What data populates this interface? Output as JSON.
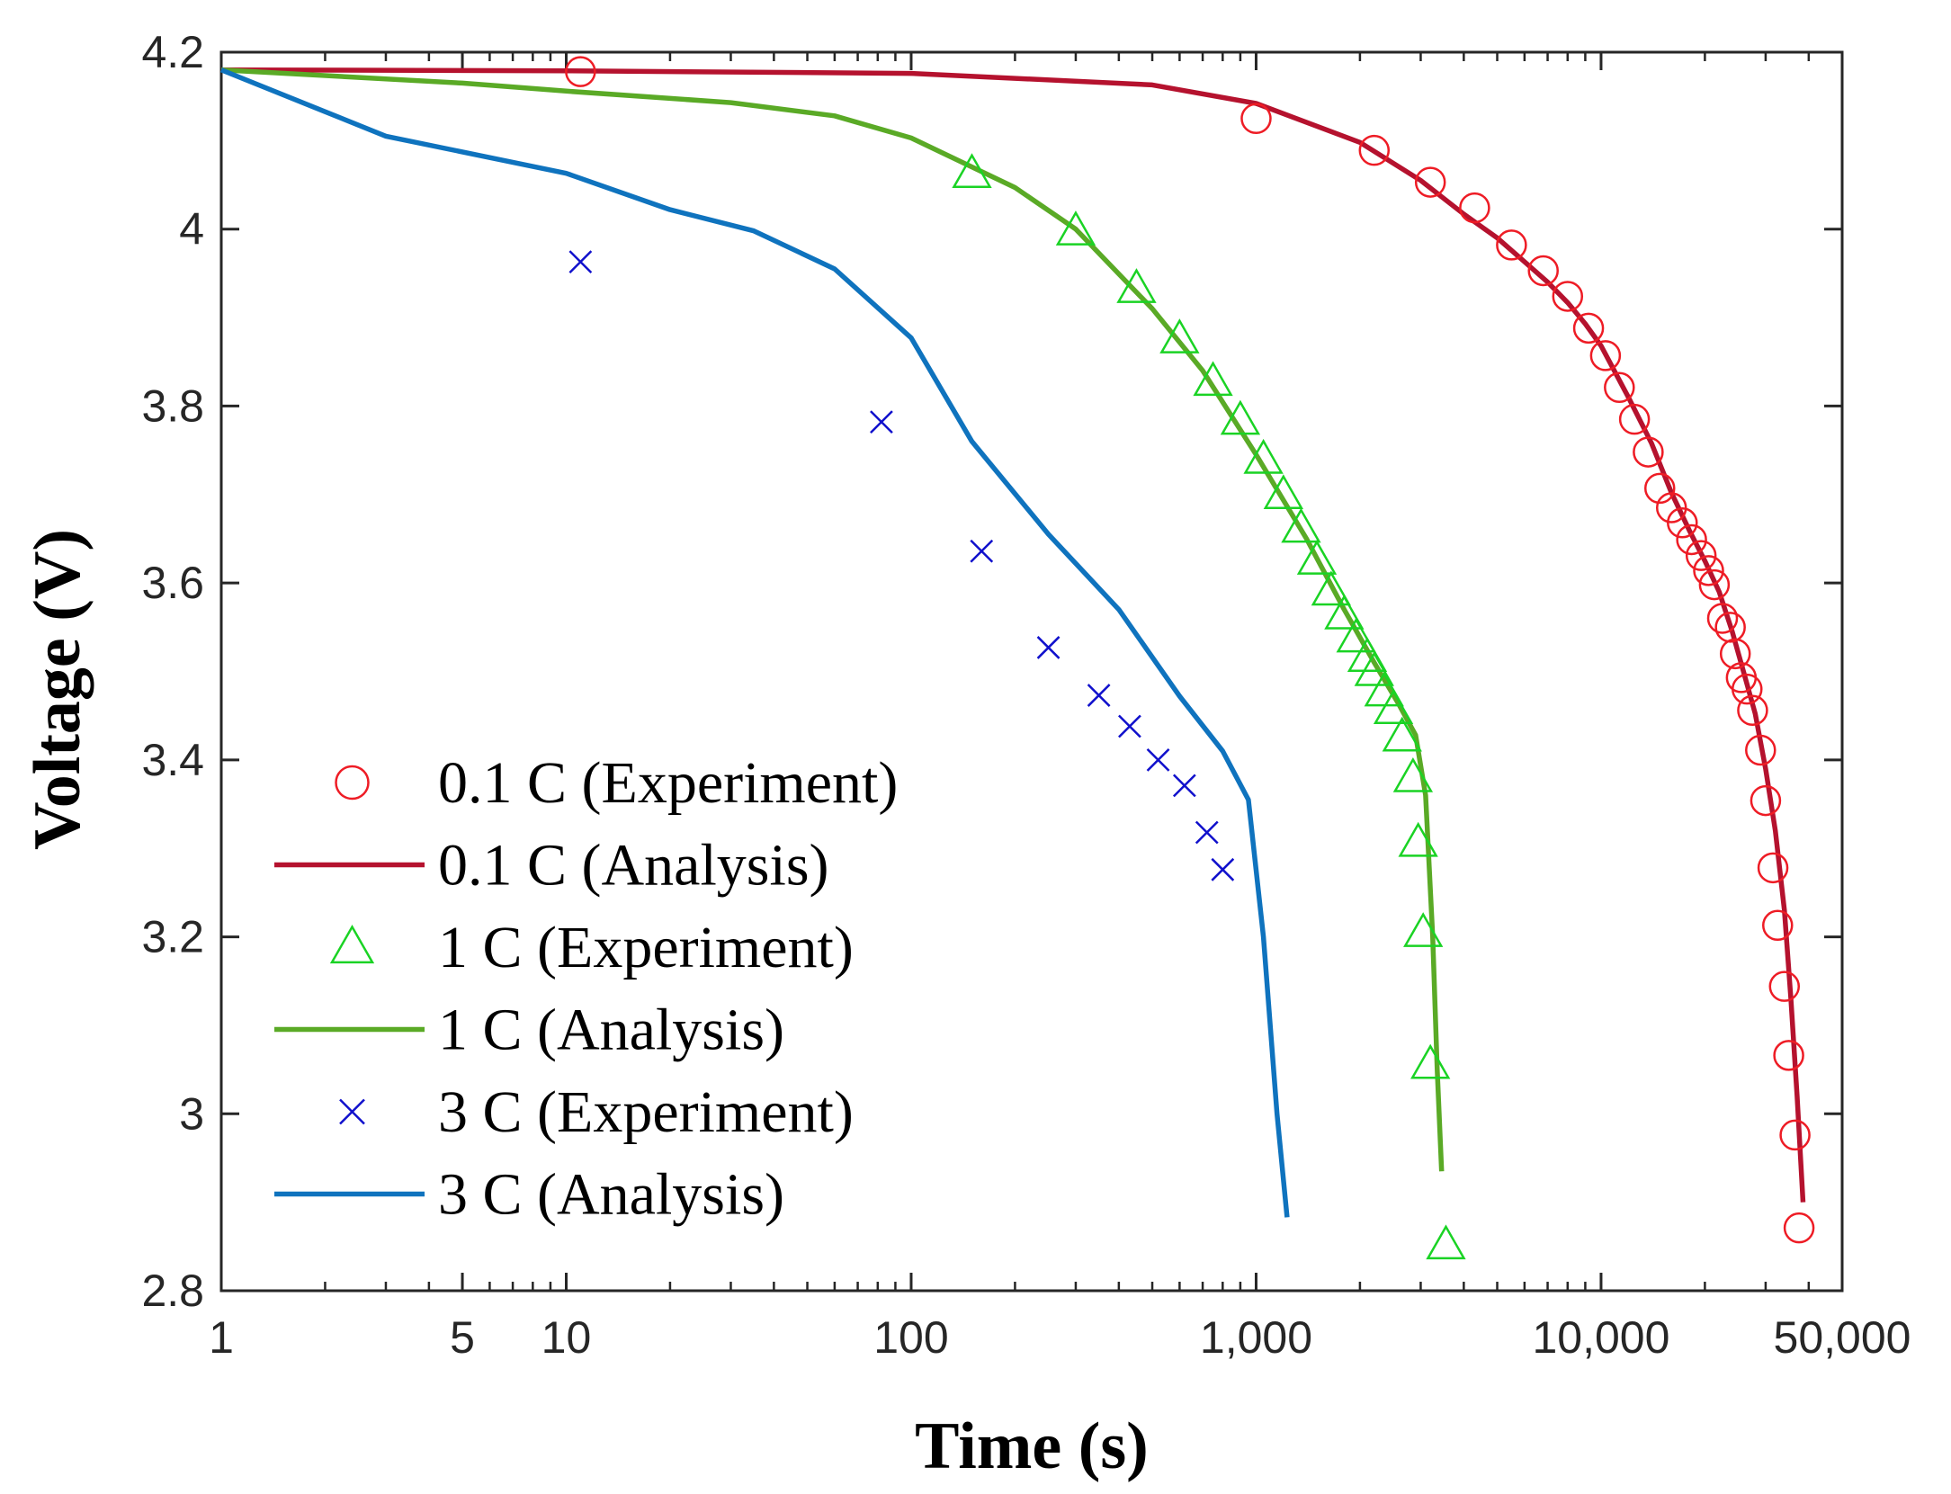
{
  "chart_data": {
    "type": "line",
    "xlabel": "Time (s)",
    "ylabel": "Voltage (V)",
    "xscale": "log",
    "xlim": [
      1,
      50000
    ],
    "ylim": [
      2.8,
      4.2
    ],
    "grid": false,
    "legend_position": "bottom-left",
    "x_ticks": [
      {
        "value": 1,
        "label": "1"
      },
      {
        "value": 5,
        "label": "5"
      },
      {
        "value": 10,
        "label": "10"
      },
      {
        "value": 100,
        "label": "100"
      },
      {
        "value": 1000,
        "label": "1,000"
      },
      {
        "value": 10000,
        "label": "10,000"
      },
      {
        "value": 50000,
        "label": "50,000"
      }
    ],
    "y_ticks": [
      {
        "value": 2.8,
        "label": "2.8"
      },
      {
        "value": 3.0,
        "label": "3"
      },
      {
        "value": 3.2,
        "label": "3.2"
      },
      {
        "value": 3.4,
        "label": "3.4"
      },
      {
        "value": 3.6,
        "label": "3.6"
      },
      {
        "value": 3.8,
        "label": "3.8"
      },
      {
        "value": 4.0,
        "label": "4"
      },
      {
        "value": 4.2,
        "label": "4.2"
      }
    ],
    "series": [
      {
        "name": "0.1 C (Experiment)",
        "kind": "marker",
        "marker": "circle",
        "color": "#ee1c25",
        "points": [
          [
            11,
            4.178
          ],
          [
            1000,
            4.125
          ],
          [
            2200,
            4.089
          ],
          [
            3200,
            4.053
          ],
          [
            4300,
            4.024
          ],
          [
            5500,
            3.982
          ],
          [
            6800,
            3.953
          ],
          [
            8000,
            3.924
          ],
          [
            9200,
            3.888
          ],
          [
            10300,
            3.857
          ],
          [
            11300,
            3.821
          ],
          [
            12500,
            3.785
          ],
          [
            13700,
            3.748
          ],
          [
            14800,
            3.707
          ],
          [
            16000,
            3.685
          ],
          [
            17200,
            3.668
          ],
          [
            18300,
            3.649
          ],
          [
            19500,
            3.631
          ],
          [
            20500,
            3.614
          ],
          [
            21300,
            3.598
          ],
          [
            22500,
            3.56
          ],
          [
            23700,
            3.55
          ],
          [
            24500,
            3.52
          ],
          [
            25500,
            3.493
          ],
          [
            26500,
            3.48
          ],
          [
            27500,
            3.456
          ],
          [
            29000,
            3.411
          ],
          [
            30000,
            3.354
          ],
          [
            31500,
            3.278
          ],
          [
            32500,
            3.213
          ],
          [
            34000,
            3.144
          ],
          [
            35000,
            3.066
          ],
          [
            36500,
            2.976
          ],
          [
            37500,
            2.871
          ]
        ]
      },
      {
        "name": "0.1 C (Analysis)",
        "kind": "line",
        "color": "#b5122e",
        "points": [
          [
            1,
            4.18
          ],
          [
            10,
            4.179
          ],
          [
            100,
            4.176
          ],
          [
            500,
            4.163
          ],
          [
            1000,
            4.142
          ],
          [
            2000,
            4.098
          ],
          [
            3000,
            4.055
          ],
          [
            4000,
            4.017
          ],
          [
            5000,
            3.99
          ],
          [
            6000,
            3.963
          ],
          [
            7000,
            3.94
          ],
          [
            8000,
            3.917
          ],
          [
            9000,
            3.893
          ],
          [
            10000,
            3.868
          ],
          [
            12000,
            3.81
          ],
          [
            14000,
            3.758
          ],
          [
            16000,
            3.702
          ],
          [
            18000,
            3.66
          ],
          [
            20000,
            3.625
          ],
          [
            22000,
            3.59
          ],
          [
            24000,
            3.545
          ],
          [
            26000,
            3.497
          ],
          [
            28000,
            3.452
          ],
          [
            30000,
            3.39
          ],
          [
            32000,
            3.32
          ],
          [
            34000,
            3.23
          ],
          [
            35500,
            3.13
          ],
          [
            37000,
            3.02
          ],
          [
            38500,
            2.9
          ]
        ]
      },
      {
        "name": "1 C (Experiment)",
        "kind": "marker",
        "marker": "triangle",
        "color": "#1ad324",
        "points": [
          [
            150,
            4.063
          ],
          [
            300,
            3.998
          ],
          [
            450,
            3.933
          ],
          [
            600,
            3.876
          ],
          [
            750,
            3.828
          ],
          [
            900,
            3.784
          ],
          [
            1050,
            3.74
          ],
          [
            1200,
            3.7
          ],
          [
            1350,
            3.662
          ],
          [
            1500,
            3.626
          ],
          [
            1650,
            3.591
          ],
          [
            1800,
            3.564
          ],
          [
            1950,
            3.538
          ],
          [
            2100,
            3.516
          ],
          [
            2200,
            3.5
          ],
          [
            2350,
            3.477
          ],
          [
            2500,
            3.457
          ],
          [
            2650,
            3.426
          ],
          [
            2850,
            3.38
          ],
          [
            2950,
            3.307
          ],
          [
            3050,
            3.205
          ],
          [
            3200,
            3.056
          ],
          [
            3550,
            2.852
          ]
        ]
      },
      {
        "name": "1 C (Analysis)",
        "kind": "line",
        "color": "#5aaa26",
        "points": [
          [
            1,
            4.18
          ],
          [
            5,
            4.165
          ],
          [
            10,
            4.156
          ],
          [
            30,
            4.143
          ],
          [
            60,
            4.128
          ],
          [
            100,
            4.103
          ],
          [
            200,
            4.047
          ],
          [
            300,
            4.0
          ],
          [
            500,
            3.91
          ],
          [
            700,
            3.84
          ],
          [
            1000,
            3.745
          ],
          [
            1400,
            3.65
          ],
          [
            1800,
            3.57
          ],
          [
            2200,
            3.51
          ],
          [
            2600,
            3.462
          ],
          [
            2900,
            3.428
          ],
          [
            3100,
            3.36
          ],
          [
            3250,
            3.2
          ],
          [
            3350,
            3.05
          ],
          [
            3450,
            2.935
          ]
        ]
      },
      {
        "name": "3 C (Experiment)",
        "kind": "marker",
        "marker": "cross",
        "color": "#1010cc",
        "points": [
          [
            11,
            3.963
          ],
          [
            82,
            3.782
          ],
          [
            160,
            3.636
          ],
          [
            250,
            3.527
          ],
          [
            350,
            3.473
          ],
          [
            430,
            3.438
          ],
          [
            520,
            3.4
          ],
          [
            620,
            3.371
          ],
          [
            720,
            3.318
          ],
          [
            800,
            3.276
          ]
        ]
      },
      {
        "name": "3 C (Analysis)",
        "kind": "line",
        "color": "#0f73be",
        "points": [
          [
            1,
            4.18
          ],
          [
            3,
            4.105
          ],
          [
            10,
            4.063
          ],
          [
            20,
            4.022
          ],
          [
            35,
            3.998
          ],
          [
            60,
            3.955
          ],
          [
            100,
            3.877
          ],
          [
            150,
            3.76
          ],
          [
            250,
            3.655
          ],
          [
            400,
            3.57
          ],
          [
            600,
            3.472
          ],
          [
            800,
            3.41
          ],
          [
            950,
            3.355
          ],
          [
            1050,
            3.2
          ],
          [
            1150,
            3.0
          ],
          [
            1230,
            2.883
          ]
        ]
      }
    ]
  }
}
